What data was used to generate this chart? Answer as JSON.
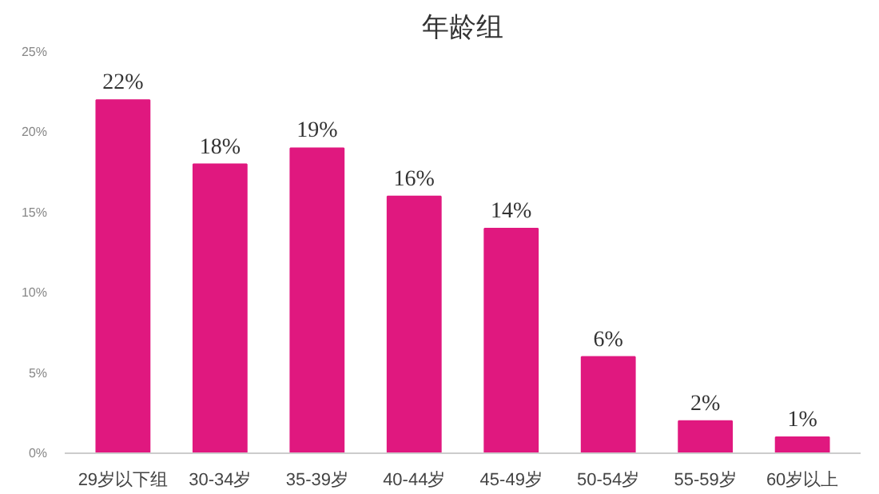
{
  "chart_data": {
    "type": "bar",
    "title": "年龄组",
    "categories": [
      "29岁以下组",
      "30-34岁",
      "35-39岁",
      "40-44岁",
      "45-49岁",
      "50-54岁",
      "55-59岁",
      "60岁以上"
    ],
    "values": [
      22,
      18,
      19,
      16,
      14,
      6,
      2,
      1
    ],
    "value_labels": [
      "22%",
      "18%",
      "19%",
      "16%",
      "14%",
      "6%",
      "2%",
      "1%"
    ],
    "color": "#e0187f",
    "ylim": [
      0,
      25
    ],
    "yticks": [
      {
        "value": 0,
        "label": "0%"
      },
      {
        "value": 5,
        "label": "5%"
      },
      {
        "value": 10,
        "label": "10%"
      },
      {
        "value": 15,
        "label": "15%"
      },
      {
        "value": 20,
        "label": "20%"
      },
      {
        "value": 25,
        "label": "25%"
      }
    ],
    "grid": false
  }
}
